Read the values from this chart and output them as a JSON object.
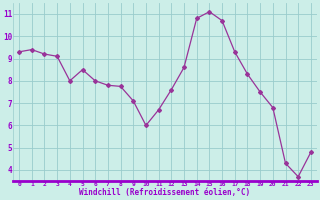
{
  "x": [
    0,
    1,
    2,
    3,
    4,
    5,
    6,
    7,
    8,
    9,
    10,
    11,
    12,
    13,
    14,
    15,
    16,
    17,
    18,
    19,
    20,
    21,
    22,
    23
  ],
  "y": [
    9.3,
    9.4,
    9.2,
    9.1,
    8.0,
    8.5,
    8.0,
    7.8,
    7.75,
    7.1,
    6.0,
    6.7,
    7.6,
    8.6,
    10.8,
    11.1,
    10.7,
    9.3,
    8.3,
    7.5,
    6.8,
    4.3,
    3.7,
    4.8
  ],
  "xlabel": "Windchill (Refroidissement éolien,°C)",
  "line_color": "#993399",
  "marker_color": "#993399",
  "bg_color": "#cceee8",
  "grid_color": "#99cccc",
  "axis_label_color": "#9900cc",
  "xlabel_color": "#9900cc",
  "bottom_bar_color": "#9900cc",
  "ylim": [
    3.5,
    11.5
  ],
  "xlim": [
    -0.5,
    23.5
  ],
  "yticks": [
    4,
    5,
    6,
    7,
    8,
    9,
    10,
    11
  ],
  "xticks": [
    0,
    1,
    2,
    3,
    4,
    5,
    6,
    7,
    8,
    9,
    10,
    11,
    12,
    13,
    14,
    15,
    16,
    17,
    18,
    19,
    20,
    21,
    22,
    23
  ]
}
